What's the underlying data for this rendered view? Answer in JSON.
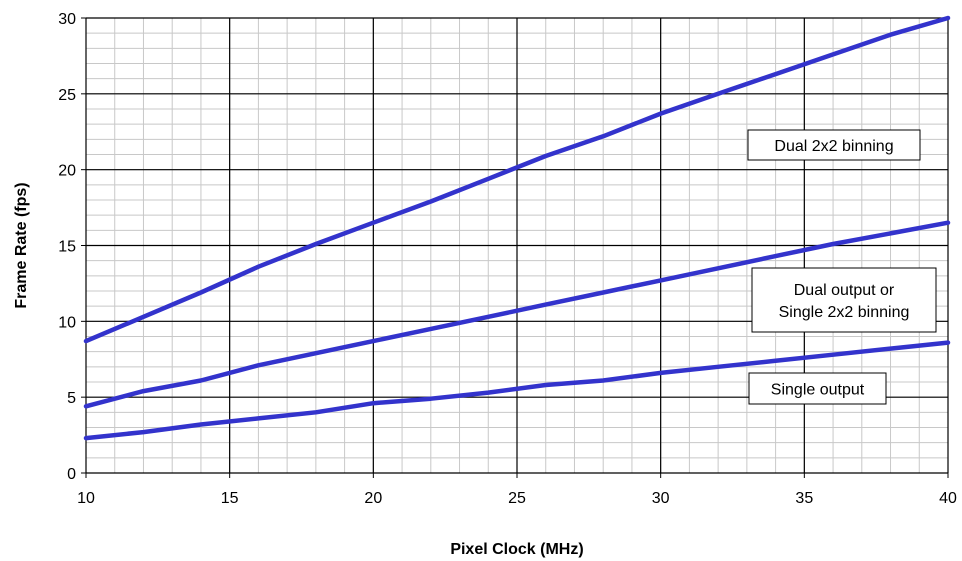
{
  "chart_data": {
    "type": "line",
    "title": "",
    "xlabel": "Pixel Clock (MHz)",
    "ylabel": "Frame Rate (fps)",
    "xlim": [
      10,
      40
    ],
    "ylim": [
      0,
      30
    ],
    "xticks": [
      10,
      15,
      20,
      25,
      30,
      35,
      40
    ],
    "yticks": [
      0,
      5,
      10,
      15,
      20,
      25,
      30
    ],
    "grid": true,
    "colors": {
      "line": "#3333cc",
      "grid_major": "#000000",
      "grid_minor": "#c8c8c8"
    },
    "series": [
      {
        "name": "Dual 2x2 binning",
        "x": [
          10,
          12,
          14,
          16,
          18,
          20,
          22,
          24,
          26,
          28,
          30,
          32,
          34,
          36,
          38,
          40
        ],
        "values": [
          8.7,
          10.3,
          11.9,
          13.6,
          15.1,
          16.5,
          17.9,
          19.4,
          20.9,
          22.2,
          23.7,
          25.0,
          26.3,
          27.6,
          28.9,
          30.0
        ]
      },
      {
        "name": "Dual output or Single 2x2 binning",
        "x": [
          10,
          12,
          14,
          16,
          18,
          20,
          22,
          24,
          26,
          28,
          30,
          32,
          34,
          36,
          38,
          40
        ],
        "values": [
          4.4,
          5.4,
          6.1,
          7.1,
          7.9,
          8.7,
          9.5,
          10.3,
          11.1,
          11.9,
          12.7,
          13.5,
          14.3,
          15.1,
          15.8,
          16.5
        ]
      },
      {
        "name": "Single output",
        "x": [
          10,
          12,
          14,
          16,
          18,
          20,
          22,
          24,
          26,
          28,
          30,
          32,
          34,
          36,
          38,
          40
        ],
        "values": [
          2.3,
          2.7,
          3.2,
          3.6,
          4.0,
          4.6,
          4.9,
          5.3,
          5.8,
          6.1,
          6.6,
          7.0,
          7.4,
          7.8,
          8.2,
          8.6
        ]
      }
    ],
    "annotations": [
      {
        "lines": [
          "Dual 2x2 binning"
        ]
      },
      {
        "lines": [
          "Dual output or",
          "Single 2x2 binning"
        ]
      },
      {
        "lines": [
          "Single output"
        ]
      }
    ]
  }
}
